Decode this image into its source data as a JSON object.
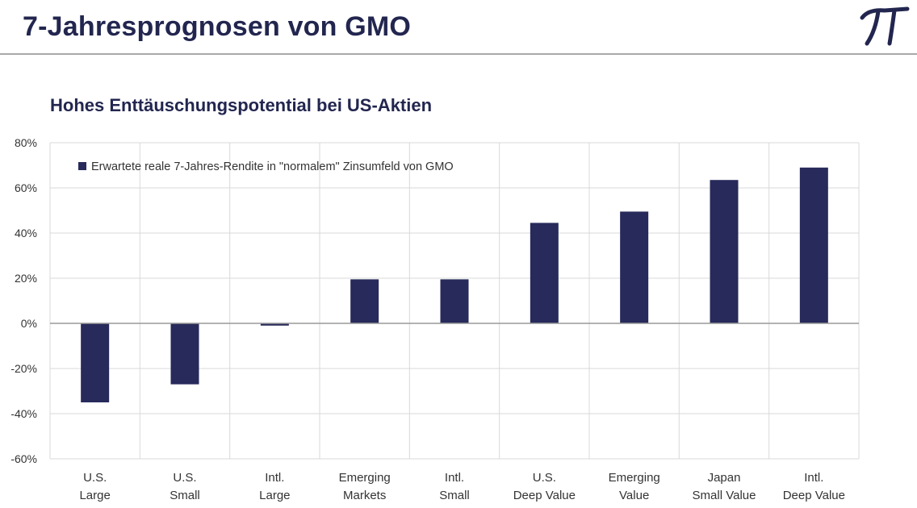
{
  "header": {
    "title": "7-Jahresprognosen von GMO",
    "logo_icon": "pi-icon"
  },
  "colors": {
    "bar": "#272a5a",
    "title": "#22264f",
    "grid": "#d9d9d9",
    "zero_line": "#9a9a9a"
  },
  "chart_data": {
    "type": "bar",
    "title": "Hohes Enttäuschungspotential bei US-Aktien",
    "categories": [
      [
        "U.S.",
        "Large"
      ],
      [
        "U.S.",
        "Small"
      ],
      [
        "Intl.",
        "Large"
      ],
      [
        "Emerging",
        "Markets"
      ],
      [
        "Intl.",
        "Small"
      ],
      [
        "U.S.",
        "Deep Value"
      ],
      [
        "Emerging",
        "Value"
      ],
      [
        "Japan",
        "Small Value"
      ],
      [
        "Intl.",
        "Deep Value"
      ]
    ],
    "series": [
      {
        "name": "Erwartete reale 7-Jahres-Rendite in \"normalem\" Zinsumfeld von GMO",
        "values": [
          -35,
          -27,
          -1,
          19.5,
          19.5,
          44.5,
          49.5,
          63.5,
          69
        ]
      }
    ],
    "ylim": [
      -60,
      80
    ],
    "yticks": [
      80,
      60,
      40,
      20,
      0,
      -20,
      -40,
      -60
    ],
    "ytick_labels": [
      "80%",
      "60%",
      "40%",
      "20%",
      "0%",
      "-20%",
      "-40%",
      "-60%"
    ],
    "grid": true,
    "legend_position": "top-left"
  }
}
